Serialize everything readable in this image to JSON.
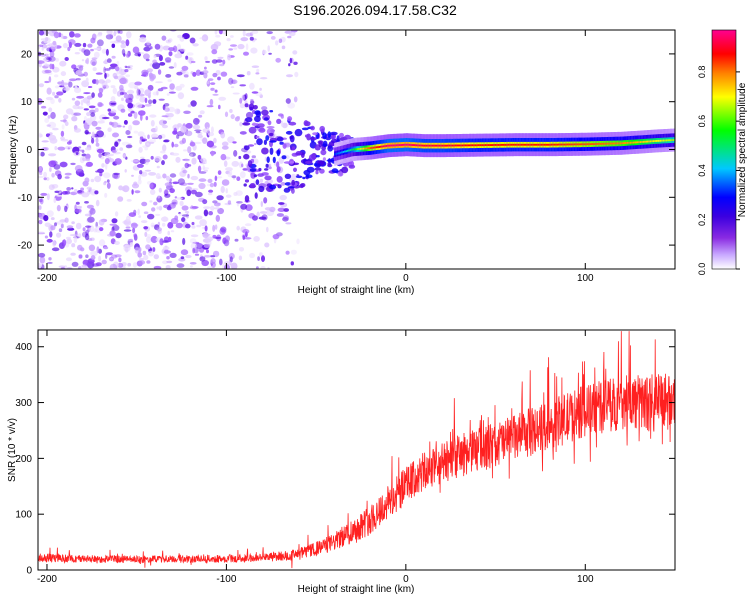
{
  "title": "S196.2026.094.17.58.C32",
  "chart_data": [
    {
      "type": "heatmap",
      "name": "spectrogram",
      "xlabel": "Height of straight line (km)",
      "ylabel": "Frequency (Hz)",
      "xlim": [
        -205,
        150
      ],
      "ylim": [
        -25,
        25
      ],
      "xticks": [
        -200,
        -100,
        0,
        100
      ],
      "yticks": [
        -20,
        -10,
        0,
        10,
        20
      ],
      "colorbar": {
        "label": "Normalized spectral amplitude",
        "range": [
          0.0,
          0.97
        ],
        "ticks": [
          0.0,
          0.2,
          0.4,
          0.6,
          0.8
        ],
        "tick_labels": [
          "0.0",
          "0.2",
          "0.4",
          "0.6",
          "0.8"
        ],
        "colormap": [
          "#ffffff",
          "#9a50ff",
          "#4a00e0",
          "#0000ff",
          "#00c8ff",
          "#00ff00",
          "#ffff00",
          "#ff8000",
          "#ff0000",
          "#ff0090"
        ]
      },
      "noise_region_x": [
        -205,
        -60
      ],
      "signal_trace": {
        "x": [
          -40,
          -30,
          -20,
          -10,
          0,
          10,
          20,
          40,
          60,
          80,
          100,
          120,
          140,
          150
        ],
        "freq": [
          -1.0,
          0.0,
          0.3,
          0.8,
          1.0,
          0.8,
          0.8,
          0.9,
          1.0,
          1.0,
          1.1,
          1.3,
          1.8,
          2.0
        ],
        "amplitude": [
          0.35,
          0.5,
          0.8,
          0.95,
          0.95,
          0.9,
          0.9,
          0.85,
          0.85,
          0.85,
          0.8,
          0.75,
          0.65,
          0.6
        ]
      }
    },
    {
      "type": "line",
      "name": "snr",
      "xlabel": "Height of straight line (km)",
      "ylabel": "SNR (10 * v/v)",
      "xlim": [
        -205,
        150
      ],
      "ylim": [
        0,
        430
      ],
      "xticks": [
        -200,
        -100,
        0,
        100
      ],
      "yticks": [
        0,
        100,
        200,
        300,
        400
      ],
      "color": "#ff2020",
      "series": [
        {
          "name": "SNR",
          "x": [
            -205,
            -180,
            -150,
            -120,
            -100,
            -80,
            -60,
            -50,
            -40,
            -30,
            -20,
            -10,
            0,
            10,
            20,
            30,
            40,
            60,
            80,
            100,
            120,
            140,
            150
          ],
          "mean": [
            22,
            20,
            19,
            20,
            20,
            22,
            28,
            38,
            50,
            70,
            90,
            120,
            150,
            175,
            190,
            205,
            215,
            235,
            260,
            285,
            300,
            300,
            305
          ],
          "spread": [
            15,
            14,
            13,
            14,
            14,
            15,
            20,
            25,
            32,
            45,
            55,
            65,
            70,
            72,
            75,
            78,
            80,
            85,
            90,
            95,
            100,
            105,
            110
          ]
        }
      ]
    }
  ]
}
